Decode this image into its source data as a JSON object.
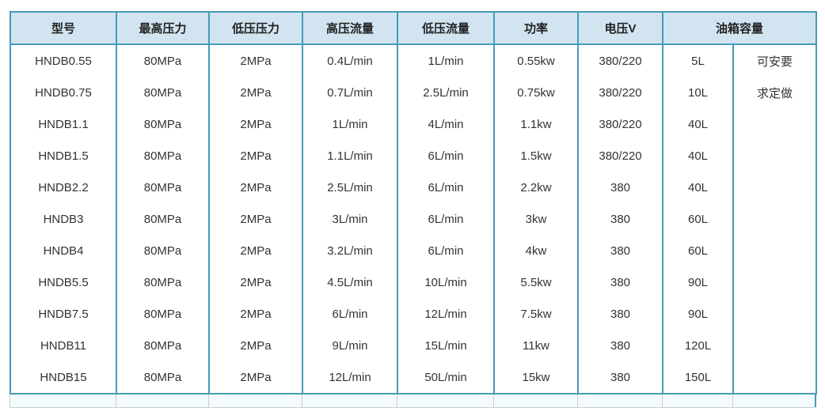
{
  "colors": {
    "border_teal": "#479ab8",
    "header_background": "#d3e4f1",
    "footer_background": "#f3fafd",
    "gray_border": "#cccccc",
    "text": "#333333"
  },
  "table": {
    "headers": [
      "型号",
      "最高压力",
      "低压压力",
      "高压流量",
      "低压流量",
      "功率",
      "电压V",
      "油箱容量"
    ],
    "rows": [
      [
        "HNDB0.55",
        "80MPa",
        "2MPa",
        "0.4L/min",
        "1L/min",
        "0.55kw",
        "380/220",
        "5L",
        "可安要"
      ],
      [
        "HNDB0.75",
        "80MPa",
        "2MPa",
        "0.7L/min",
        "2.5L/min",
        "0.75kw",
        "380/220",
        "10L",
        "求定做"
      ],
      [
        "HNDB1.1",
        "80MPa",
        "2MPa",
        "1L/min",
        "4L/min",
        "1.1kw",
        "380/220",
        "40L",
        ""
      ],
      [
        "HNDB1.5",
        "80MPa",
        "2MPa",
        "1.1L/min",
        "6L/min",
        "1.5kw",
        "380/220",
        "40L",
        ""
      ],
      [
        "HNDB2.2",
        "80MPa",
        "2MPa",
        "2.5L/min",
        "6L/min",
        "2.2kw",
        "380",
        "40L",
        ""
      ],
      [
        "HNDB3",
        "80MPa",
        "2MPa",
        "3L/min",
        "6L/min",
        "3kw",
        "380",
        "60L",
        ""
      ],
      [
        "HNDB4",
        "80MPa",
        "2MPa",
        "3.2L/min",
        "6L/min",
        "4kw",
        "380",
        "60L",
        ""
      ],
      [
        "HNDB5.5",
        "80MPa",
        "2MPa",
        "4.5L/min",
        "10L/min",
        "5.5kw",
        "380",
        "90L",
        ""
      ],
      [
        "HNDB7.5",
        "80MPa",
        "2MPa",
        "6L/min",
        "12L/min",
        "7.5kw",
        "380",
        "90L",
        ""
      ],
      [
        "HNDB11",
        "80MPa",
        "2MPa",
        "9L/min",
        "15L/min",
        "11kw",
        "380",
        "120L",
        ""
      ],
      [
        "HNDB15",
        "80MPa",
        "2MPa",
        "12L/min",
        "50L/min",
        "15kw",
        "380",
        "150L",
        ""
      ]
    ]
  }
}
